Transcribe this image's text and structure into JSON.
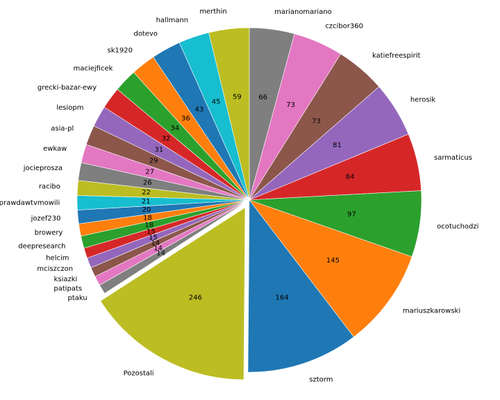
{
  "chart_data": {
    "type": "pie",
    "start_angle_deg": 90,
    "direction": "clockwise",
    "exploded_slices": [
      "Pozostali"
    ],
    "slices": [
      {
        "label": "marianomariano",
        "value": 66,
        "color": "#7f7f7f"
      },
      {
        "label": "czcibor360",
        "value": 73,
        "color": "#e377c2"
      },
      {
        "label": "katiefreespirit",
        "value": 73,
        "color": "#8c564b"
      },
      {
        "label": "herosik",
        "value": 81,
        "color": "#9467bd"
      },
      {
        "label": "sarmaticus",
        "value": 84,
        "color": "#d62728"
      },
      {
        "label": "ocotuchodzi",
        "value": 97,
        "color": "#2ca02c"
      },
      {
        "label": "mariuszkarowski",
        "value": 145,
        "color": "#ff7f0e"
      },
      {
        "label": "sztorm",
        "value": 164,
        "color": "#1f77b4"
      },
      {
        "label": "Pozostali",
        "value": 246,
        "color": "#bcbd22"
      },
      {
        "label": "ptaku",
        "value": 14,
        "color": "#7f7f7f"
      },
      {
        "label": "patipats",
        "value": 14,
        "color": "#e377c2"
      },
      {
        "label": "ksiazki",
        "value": 14,
        "color": "#8c564b"
      },
      {
        "label": "mciszczon",
        "value": 15,
        "color": "#9467bd"
      },
      {
        "label": "helcim",
        "value": 15,
        "color": "#d62728"
      },
      {
        "label": "deepresearch",
        "value": 18,
        "color": "#2ca02c"
      },
      {
        "label": "browery",
        "value": 18,
        "color": "#ff7f0e"
      },
      {
        "label": "jozef230",
        "value": 20,
        "color": "#1f77b4"
      },
      {
        "label": "prawdawtvmowili",
        "value": 21,
        "color": "#17becf"
      },
      {
        "label": "racibo",
        "value": 22,
        "color": "#bcbd22"
      },
      {
        "label": "jocieprosza",
        "value": 26,
        "color": "#7f7f7f"
      },
      {
        "label": "ewkaw",
        "value": 27,
        "color": "#e377c2"
      },
      {
        "label": "asia-pl",
        "value": 29,
        "color": "#8c564b"
      },
      {
        "label": "lesiopm",
        "value": 31,
        "color": "#9467bd"
      },
      {
        "label": "grecki-bazar-ewy",
        "value": 32,
        "color": "#d62728"
      },
      {
        "label": "maciejficek",
        "value": 34,
        "color": "#2ca02c"
      },
      {
        "label": "sk1920",
        "value": 36,
        "color": "#ff7f0e"
      },
      {
        "label": "dotevo",
        "value": 43,
        "color": "#1f77b4"
      },
      {
        "label": "hallmann",
        "value": 45,
        "color": "#17becf"
      },
      {
        "label": "merthin",
        "value": 59,
        "color": "#bcbd22"
      }
    ]
  }
}
